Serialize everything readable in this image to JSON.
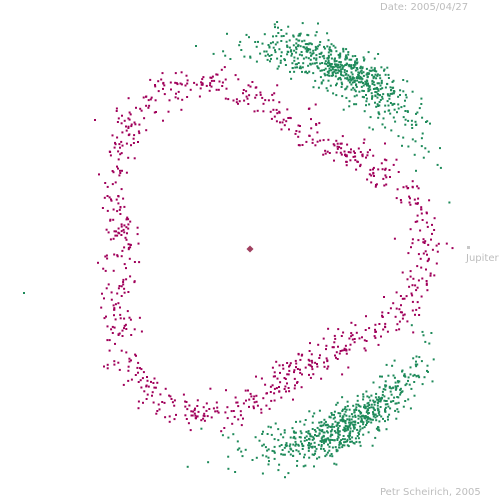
{
  "labels": {
    "date": "Date: 2005/04/27",
    "jupiter": "Jupiter",
    "credit": "Petr Scheirich, 2005"
  },
  "colors": {
    "background": "#ffffff",
    "hilda_asteroid": "#a0005a",
    "trojan_asteroid": "#1e8a5a",
    "sun": "#a04060",
    "jupiter": "#c8c8c8",
    "label_text": "#bdbdbd"
  },
  "counts": {
    "hilda_group": 900,
    "trojans_l4": 650,
    "trojans_l5": 650
  }
}
